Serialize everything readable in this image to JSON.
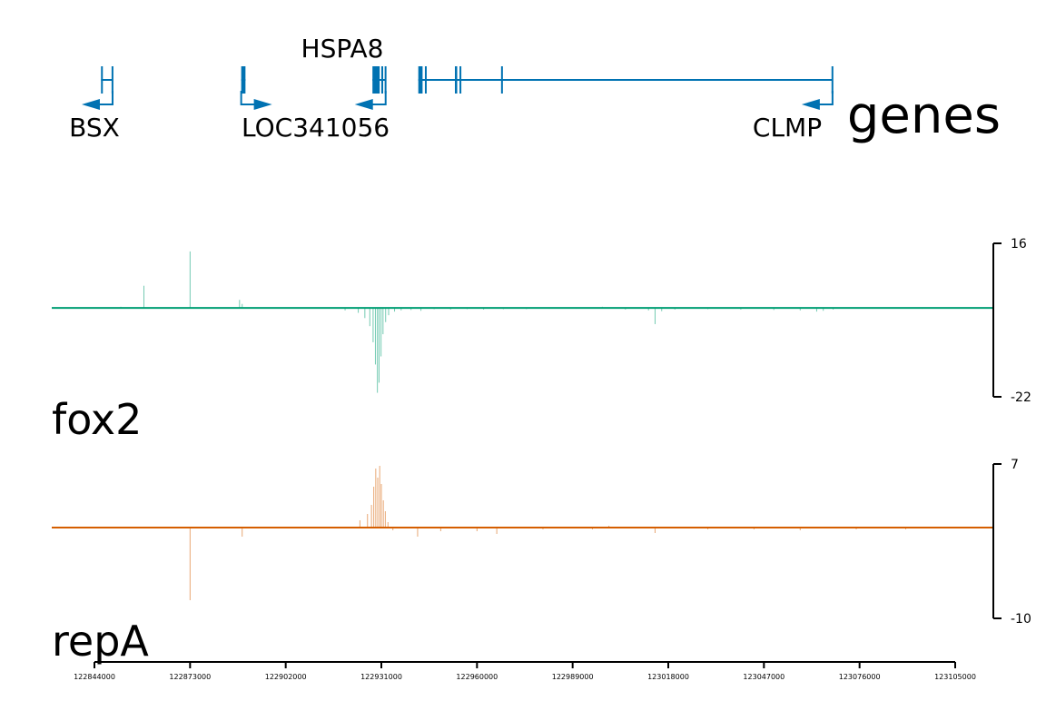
{
  "colors": {
    "genes": "#0072B2",
    "fox2": "#009E73",
    "repA": "#D55E00",
    "axis": "#000000"
  },
  "chart_data": [
    {
      "type": "gene-track",
      "track_label": "genes",
      "genes": [
        {
          "name": "BSX",
          "start": 122846000,
          "end": 122849500,
          "strand": "-",
          "row": 0,
          "exons": [
            [
              122846000,
              122846300
            ],
            [
              122849200,
              122849500
            ]
          ]
        },
        {
          "name": "LOC341056",
          "start": 122888500,
          "end": 122889800,
          "strand": "+",
          "row": 0,
          "exons": [
            [
              122888500,
              122889800
            ]
          ]
        },
        {
          "name": "HSPA8",
          "start": 122928300,
          "end": 122932300,
          "strand": "-",
          "row": 0,
          "exons": [
            [
              122928300,
              122930500
            ],
            [
              122931000,
              122931400
            ],
            [
              122932000,
              122932300
            ]
          ]
        },
        {
          "name": "CLMP",
          "start": 122942200,
          "end": 123067800,
          "strand": "-",
          "row": 0,
          "exons": [
            [
              122942200,
              122943500
            ],
            [
              122944200,
              122944600
            ],
            [
              122953300,
              122954000
            ],
            [
              122954700,
              122955000
            ],
            [
              122967300,
              122967600
            ],
            [
              123067500,
              123067800
            ]
          ]
        }
      ]
    },
    {
      "type": "signal",
      "track_label": "fox2",
      "ylim": [
        -22,
        16
      ],
      "ticks": [
        "16",
        "-22"
      ],
      "peaks": [
        [
          122852000,
          0.3
        ],
        [
          122859000,
          5.5
        ],
        [
          122873000,
          14.0
        ],
        [
          122888000,
          2.0
        ],
        [
          122888800,
          1.0
        ],
        [
          122920000,
          -0.6
        ],
        [
          122924000,
          -1.2
        ],
        [
          122926000,
          -2.5
        ],
        [
          122927500,
          -4.5
        ],
        [
          122928500,
          -8.5
        ],
        [
          122929200,
          -14.0
        ],
        [
          122929800,
          -21.0
        ],
        [
          122930300,
          -18.5
        ],
        [
          122930900,
          -12.0
        ],
        [
          122931500,
          -6.5
        ],
        [
          122932300,
          -3.5
        ],
        [
          122933200,
          -1.8
        ],
        [
          122935000,
          -0.9
        ],
        [
          122937000,
          -0.6
        ],
        [
          122940000,
          -0.5
        ],
        [
          122943000,
          -0.7
        ],
        [
          122947000,
          -0.3
        ],
        [
          122952000,
          -0.4
        ],
        [
          122957000,
          -0.3
        ],
        [
          122962000,
          -0.4
        ],
        [
          122968000,
          -0.3
        ],
        [
          122975000,
          -0.3
        ],
        [
          122982000,
          -0.2
        ],
        [
          122990000,
          -0.2
        ],
        [
          122998000,
          0.3
        ],
        [
          123005000,
          -0.4
        ],
        [
          123012000,
          -0.6
        ],
        [
          123014000,
          -4.0
        ],
        [
          123016000,
          -0.8
        ],
        [
          123020000,
          -0.4
        ],
        [
          123030000,
          -0.3
        ],
        [
          123040000,
          -0.4
        ],
        [
          123050000,
          -0.5
        ],
        [
          123058000,
          -0.6
        ],
        [
          123063000,
          -0.9
        ],
        [
          123065000,
          -0.7
        ],
        [
          123068000,
          -0.4
        ],
        [
          123080000,
          -0.2
        ],
        [
          123095000,
          -0.2
        ]
      ]
    },
    {
      "type": "signal",
      "track_label": "repA",
      "ylim": [
        -10,
        7
      ],
      "ticks": [
        "7",
        "-10"
      ],
      "peaks": [
        [
          122873000,
          -8.0
        ],
        [
          122888800,
          -1.0
        ],
        [
          122924500,
          0.8
        ],
        [
          122926800,
          1.5
        ],
        [
          122928000,
          2.5
        ],
        [
          122928700,
          4.5
        ],
        [
          122929300,
          6.5
        ],
        [
          122929900,
          5.5
        ],
        [
          122930500,
          6.8
        ],
        [
          122931000,
          4.8
        ],
        [
          122931600,
          3.0
        ],
        [
          122932200,
          1.8
        ],
        [
          122933000,
          0.6
        ],
        [
          122934500,
          -0.3
        ],
        [
          122942000,
          -1.0
        ],
        [
          122949000,
          -0.4
        ],
        [
          122960000,
          -0.4
        ],
        [
          122966000,
          -0.7
        ],
        [
          122980000,
          -0.2
        ],
        [
          122995000,
          -0.2
        ],
        [
          123000000,
          0.2
        ],
        [
          123014000,
          -0.6
        ],
        [
          123030000,
          -0.2
        ],
        [
          123044000,
          -0.2
        ],
        [
          123058000,
          -0.3
        ],
        [
          123075000,
          -0.2
        ],
        [
          123090000,
          -0.2
        ]
      ]
    }
  ],
  "x_axis": {
    "range": [
      122844000,
      123105000
    ],
    "ticks": [
      "122844000",
      "122873000",
      "122902000",
      "122931000",
      "122960000",
      "122989000",
      "123018000",
      "123047000",
      "123076000",
      "123105000"
    ]
  }
}
